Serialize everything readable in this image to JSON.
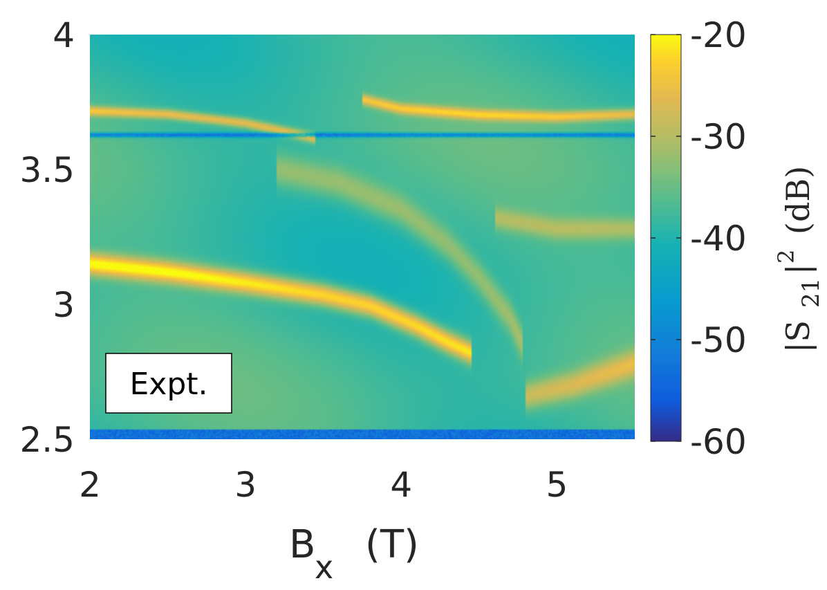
{
  "chart_data": {
    "type": "heatmap",
    "colormap": "parula",
    "x_axis": {
      "label_main": "B",
      "label_sub": "x",
      "label_unit": "(T)",
      "range": [
        2,
        5.5
      ],
      "ticks": [
        2,
        3,
        4,
        5
      ],
      "tick_labels": [
        "2",
        "3",
        "4",
        "5"
      ]
    },
    "y_axis": {
      "label": "",
      "range": [
        2.5,
        4
      ],
      "ticks": [
        2.5,
        3,
        3.5,
        4
      ],
      "tick_labels": [
        "2.5",
        "3",
        "3.5",
        "4"
      ]
    },
    "colorbar": {
      "label_main": "|S",
      "label_sub": "21",
      "label_sup": "2",
      "label_unit": "(dB)",
      "range": [
        -60,
        -20
      ],
      "ticks": [
        -60,
        -50,
        -40,
        -30,
        -20
      ],
      "tick_labels": [
        "-60",
        "-50",
        "-40",
        "-30",
        "-20"
      ]
    },
    "annotation": "Expt.",
    "background_db": -38,
    "features": [
      {
        "name": "upper mode left",
        "db": -25,
        "width": 0.018,
        "points": [
          [
            2.0,
            3.717
          ],
          [
            2.5,
            3.705
          ],
          [
            3.0,
            3.672
          ],
          [
            3.3,
            3.635
          ],
          [
            3.45,
            3.615
          ]
        ]
      },
      {
        "name": "upper mode right",
        "db": -25,
        "width": 0.02,
        "points": [
          [
            3.75,
            3.76
          ],
          [
            4.0,
            3.725
          ],
          [
            4.5,
            3.703
          ],
          [
            5.0,
            3.695
          ],
          [
            5.5,
            3.705
          ]
        ]
      },
      {
        "name": "dip line",
        "db": -50,
        "width": 0.008,
        "points": [
          [
            2.0,
            3.628
          ],
          [
            5.5,
            3.628
          ]
        ]
      },
      {
        "name": "lower mode",
        "db": -20,
        "width": 0.04,
        "points": [
          [
            2.0,
            3.15
          ],
          [
            2.5,
            3.12
          ],
          [
            3.0,
            3.08
          ],
          [
            3.5,
            3.035
          ],
          [
            3.8,
            2.995
          ],
          [
            4.1,
            2.92
          ],
          [
            4.3,
            2.86
          ],
          [
            4.45,
            2.82
          ]
        ]
      },
      {
        "name": "middle anticrossing branch",
        "db": -31,
        "width": 0.06,
        "points": [
          [
            3.2,
            3.5
          ],
          [
            3.6,
            3.45
          ],
          [
            4.0,
            3.35
          ],
          [
            4.3,
            3.22
          ],
          [
            4.5,
            3.1
          ],
          [
            4.7,
            2.95
          ],
          [
            4.78,
            2.85
          ]
        ]
      },
      {
        "name": "right upper branch",
        "db": -31,
        "width": 0.04,
        "points": [
          [
            4.6,
            3.32
          ],
          [
            5.0,
            3.28
          ],
          [
            5.5,
            3.28
          ]
        ]
      },
      {
        "name": "right lower branch",
        "db": -28,
        "width": 0.05,
        "points": [
          [
            4.8,
            2.66
          ],
          [
            5.1,
            2.7
          ],
          [
            5.5,
            2.78
          ]
        ]
      },
      {
        "name": "bottom noise band",
        "db": -52,
        "width": 0.01,
        "points": [
          [
            2.0,
            2.515
          ],
          [
            5.5,
            2.515
          ]
        ]
      }
    ]
  }
}
